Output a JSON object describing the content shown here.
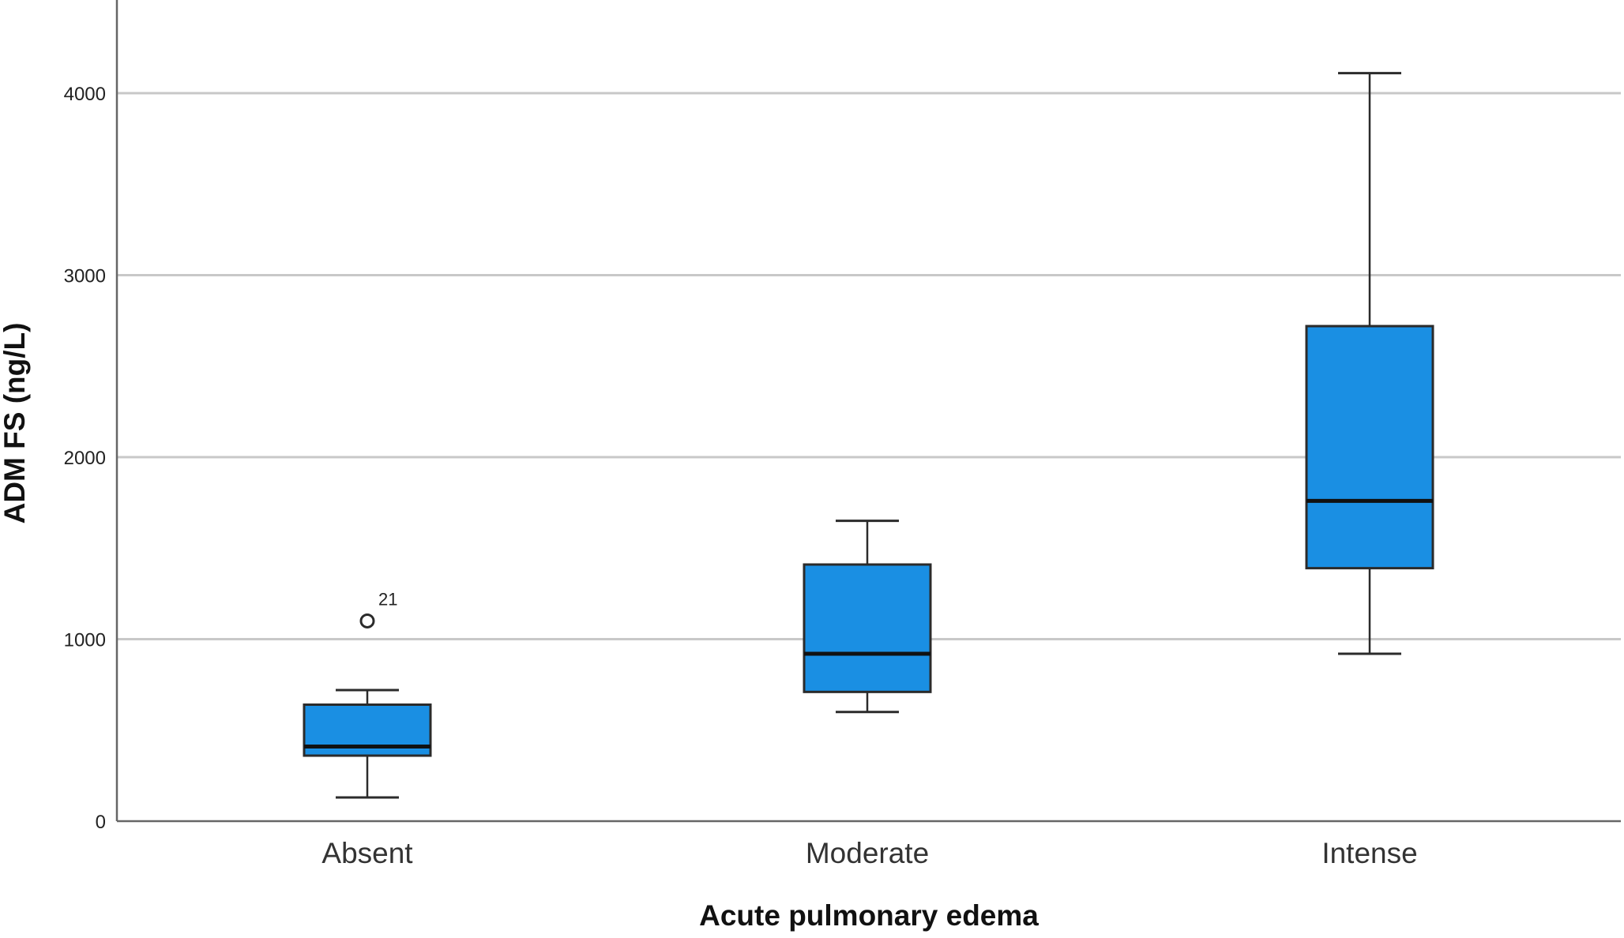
{
  "chart_data": {
    "type": "boxplot",
    "title": "",
    "xlabel": "Acute pulmonary edema",
    "ylabel": "ADM FS (ng/L)",
    "ylim": [
      0,
      4500
    ],
    "yticks": [
      0,
      1000,
      2000,
      3000,
      4000
    ],
    "grid": true,
    "categories": [
      "Absent",
      "Moderate",
      "Intense"
    ],
    "boxes": [
      {
        "category": "Absent",
        "whisker_low": 130,
        "q1": 360,
        "median": 410,
        "q3": 640,
        "whisker_high": 720
      },
      {
        "category": "Moderate",
        "whisker_low": 600,
        "q1": 710,
        "median": 920,
        "q3": 1410,
        "whisker_high": 1650
      },
      {
        "category": "Intense",
        "whisker_low": 920,
        "q1": 1390,
        "median": 1760,
        "q3": 2720,
        "whisker_high": 4110
      }
    ],
    "outliers": [
      {
        "category": "Absent",
        "value": 1100,
        "label": "21"
      }
    ],
    "colors": {
      "box_fill": "#1a8fe3",
      "box_stroke": "#2b2b2b",
      "median": "#111111",
      "grid": "#c8c8c8",
      "axis": "#666666"
    }
  }
}
